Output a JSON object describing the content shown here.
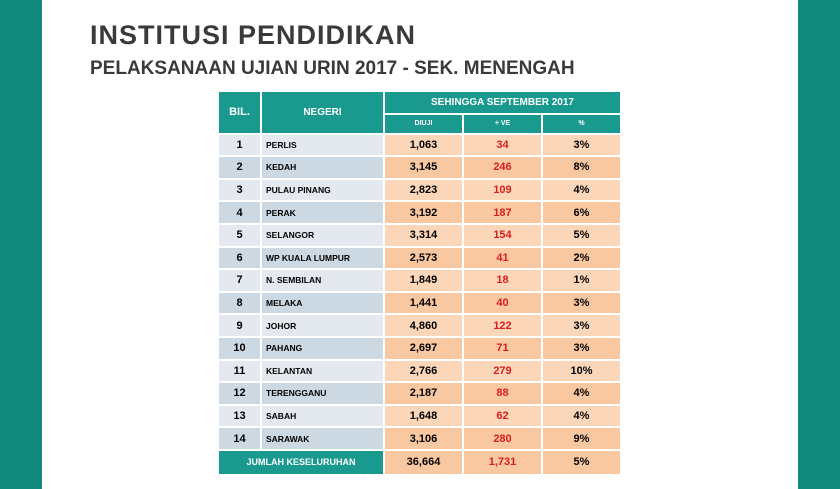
{
  "header": {
    "title": "INSTITUSI PENDIDIKAN",
    "subtitle": "PELAKSANAAN UJIAN URIN 2017 - SEK. MENENGAH"
  },
  "table": {
    "columns": [
      "BIL.",
      "NEGERI"
    ],
    "group": "SEHINGGA SEPTEMBER 2017",
    "subcolumns": [
      "DIUJI",
      "+ VE",
      "%"
    ],
    "rows": [
      [
        "1",
        "PERLIS",
        "1,063",
        "34",
        "3%"
      ],
      [
        "2",
        "KEDAH",
        "3,145",
        "246",
        "8%"
      ],
      [
        "3",
        "PULAU PINANG",
        "2,823",
        "109",
        "4%"
      ],
      [
        "4",
        "PERAK",
        "3,192",
        "187",
        "6%"
      ],
      [
        "5",
        "SELANGOR",
        "3,314",
        "154",
        "5%"
      ],
      [
        "6",
        "WP KUALA LUMPUR",
        "2,573",
        "41",
        "2%"
      ],
      [
        "7",
        "N. SEMBILAN",
        "1,849",
        "18",
        "1%"
      ],
      [
        "8",
        "MELAKA",
        "1,441",
        "40",
        "3%"
      ],
      [
        "9",
        "JOHOR",
        "4,860",
        "122",
        "3%"
      ],
      [
        "10",
        "PAHANG",
        "2,697",
        "71",
        "3%"
      ],
      [
        "11",
        "KELANTAN",
        "2,766",
        "279",
        "10%"
      ],
      [
        "12",
        "TERENGGANU",
        "2,187",
        "88",
        "4%"
      ],
      [
        "13",
        "SABAH",
        "1,648",
        "62",
        "4%"
      ],
      [
        "14",
        "SARAWAK",
        "3,106",
        "280",
        "9%"
      ]
    ],
    "total": [
      "JUMLAH KESELURUHAN",
      "36,664",
      "1,731",
      "5%"
    ]
  }
}
